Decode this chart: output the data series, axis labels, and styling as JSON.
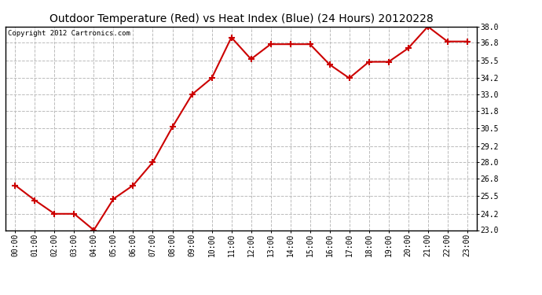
{
  "title": "Outdoor Temperature (Red) vs Heat Index (Blue) (24 Hours) 20120228",
  "copyright_text": "Copyright 2012 Cartronics.com",
  "hours": [
    "00:00",
    "01:00",
    "02:00",
    "03:00",
    "04:00",
    "05:00",
    "06:00",
    "07:00",
    "08:00",
    "09:00",
    "10:00",
    "11:00",
    "12:00",
    "13:00",
    "14:00",
    "15:00",
    "16:00",
    "17:00",
    "18:00",
    "19:00",
    "20:00",
    "21:00",
    "22:00",
    "23:00"
  ],
  "temp_red": [
    26.3,
    25.2,
    24.2,
    24.2,
    23.0,
    25.3,
    26.3,
    28.0,
    30.6,
    33.0,
    34.2,
    37.2,
    35.6,
    36.7,
    36.7,
    36.7,
    35.2,
    34.2,
    35.4,
    35.4,
    36.4,
    38.0,
    36.9,
    36.9
  ],
  "ylim": [
    23.0,
    38.0
  ],
  "yticks": [
    23.0,
    24.2,
    25.5,
    26.8,
    28.0,
    29.2,
    30.5,
    31.8,
    33.0,
    34.2,
    35.5,
    36.8,
    38.0
  ],
  "line_color": "#cc0000",
  "marker": "+",
  "marker_size": 6,
  "marker_edge_width": 1.5,
  "background_color": "#ffffff",
  "plot_bg_color": "#ffffff",
  "grid_color": "#bbbbbb",
  "grid_style": "--",
  "title_fontsize": 10,
  "tick_fontsize": 7,
  "copyright_fontsize": 6.5,
  "line_width": 1.5
}
